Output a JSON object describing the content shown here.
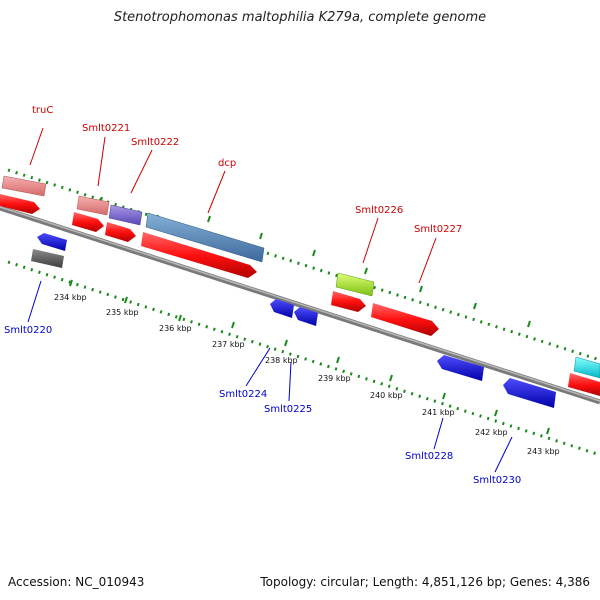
{
  "title": "Stenotrophomonas maltophilia K279a, complete genome",
  "footer": {
    "accession": "Accession: NC_010943",
    "summary": "Topology: circular; Length: 4,851,126 bp; Genes: 4,386"
  },
  "colors": {
    "forward_label": "#cc0000",
    "reverse_label": "#0000cc",
    "backbone": "#8a8a8a",
    "tick": "#1a8a1a"
  },
  "scale_labels": [
    "234 kbp",
    "235 kbp",
    "236 kbp",
    "237 kbp",
    "238 kbp",
    "239 kbp",
    "240 kbp",
    "241 kbp",
    "242 kbp",
    "243 kbp"
  ],
  "forward_gene_labels": [
    "truC",
    "Smlt0221",
    "Smlt0222",
    "dcp",
    "Smlt0226",
    "Smlt0227"
  ],
  "reverse_gene_labels": [
    "Smlt0220",
    "Smlt0224",
    "Smlt0225",
    "Smlt0228",
    "Smlt0230"
  ]
}
